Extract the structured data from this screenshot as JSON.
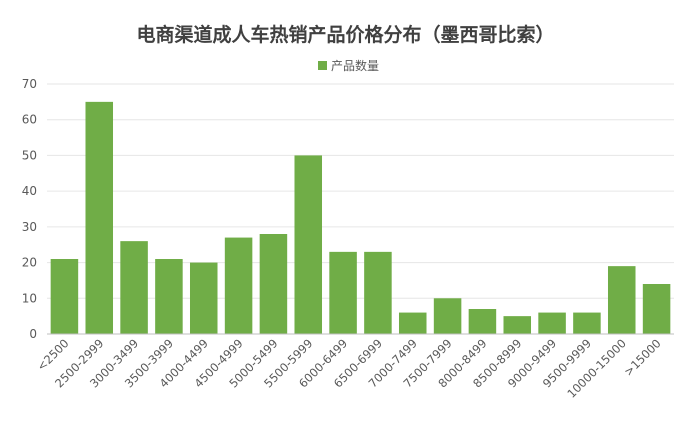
{
  "chart_data": {
    "type": "bar",
    "title": "电商渠道成人车热销产品价格分布（墨西哥比索）",
    "xlabel": "",
    "ylabel": "",
    "ylim": [
      0,
      70
    ],
    "yticks": [
      0,
      10,
      20,
      30,
      40,
      50,
      60,
      70
    ],
    "grid": true,
    "legend_position": "top-center",
    "categories": [
      "<2500",
      "2500-2999",
      "3000-3499",
      "3500-3999",
      "4000-4499",
      "4500-4999",
      "5000-5499",
      "5500-5999",
      "6000-6499",
      "6500-6999",
      "7000-7499",
      "7500-7999",
      "8000-8499",
      "8500-8999",
      "9000-9499",
      "9500-9999",
      "10000-15000",
      ">15000"
    ],
    "series": [
      {
        "name": "产品数量",
        "color": "#70ad47",
        "values": [
          21,
          65,
          26,
          21,
          20,
          27,
          28,
          50,
          23,
          23,
          6,
          10,
          7,
          5,
          6,
          6,
          19,
          14
        ]
      }
    ]
  }
}
